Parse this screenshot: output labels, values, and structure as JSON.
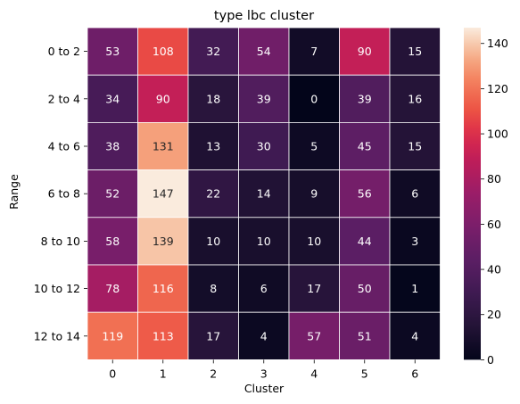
{
  "chart_data": {
    "type": "heatmap",
    "title": "type lbc cluster",
    "xlabel": "Cluster",
    "ylabel": "Range",
    "x_categories": [
      "0",
      "1",
      "2",
      "3",
      "4",
      "5",
      "6"
    ],
    "y_categories": [
      "0 to 2",
      "2 to 4",
      "4 to 6",
      "6 to 8",
      "8 to 10",
      "10 to 12",
      "12 to 14"
    ],
    "values": [
      [
        53,
        108,
        32,
        54,
        7,
        90,
        15
      ],
      [
        34,
        90,
        18,
        39,
        0,
        39,
        16
      ],
      [
        38,
        131,
        13,
        30,
        5,
        45,
        15
      ],
      [
        52,
        147,
        22,
        14,
        9,
        56,
        6
      ],
      [
        58,
        139,
        10,
        10,
        10,
        44,
        3
      ],
      [
        78,
        116,
        8,
        6,
        17,
        50,
        1
      ],
      [
        119,
        113,
        17,
        4,
        57,
        51,
        4
      ]
    ],
    "colormap": "rocket",
    "colorbar": {
      "range": [
        0,
        147
      ],
      "ticks": [
        "0",
        "20",
        "40",
        "60",
        "80",
        "100",
        "120",
        "140"
      ]
    },
    "grid_lines": true
  }
}
